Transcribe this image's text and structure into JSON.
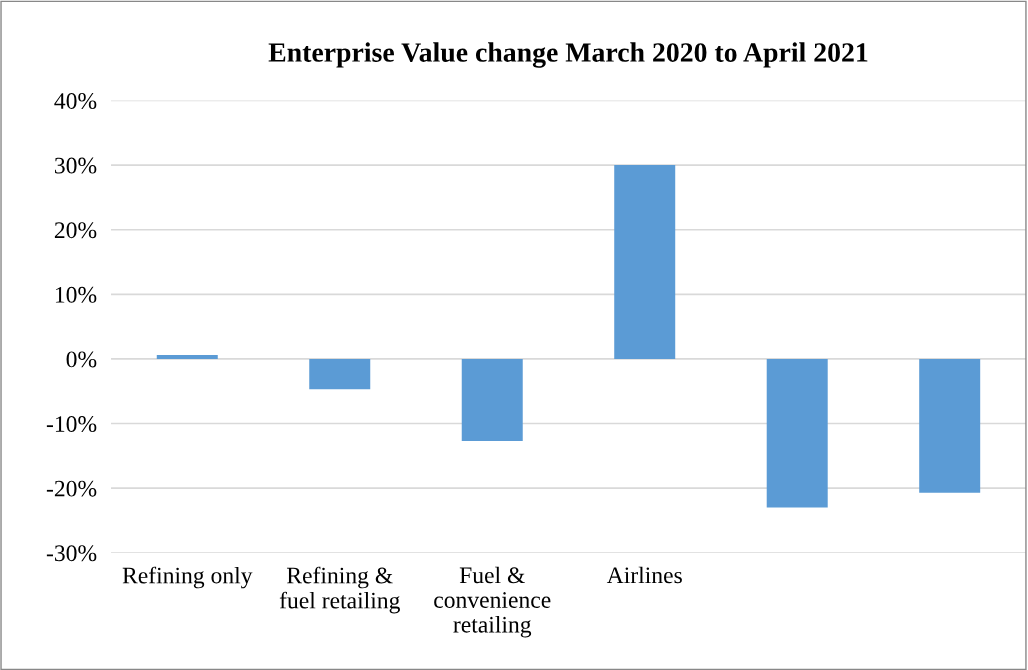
{
  "chart_data": {
    "type": "bar",
    "title": "Enterprise Value change March 2020 to April 2021",
    "categories": [
      "Refining only",
      "Refining &\nfuel retailing",
      "Fuel &\nconvenience\nretailing",
      "Airlines",
      null,
      null
    ],
    "values": [
      0.6,
      -4.7,
      -12.7,
      30,
      -23,
      -20.7
    ],
    "color": "#5b9bd5",
    "ylim": [
      -30,
      40
    ],
    "yticks": [
      {
        "value": -30,
        "label": "-30%"
      },
      {
        "value": -20,
        "label": "-20%"
      },
      {
        "value": -10,
        "label": "-10%"
      },
      {
        "value": 0,
        "label": "0%"
      },
      {
        "value": 10,
        "label": "10%"
      },
      {
        "value": 20,
        "label": "20%"
      },
      {
        "value": 30,
        "label": "30%"
      },
      {
        "value": 40,
        "label": "40%"
      }
    ],
    "grid": "y",
    "legend": false
  }
}
